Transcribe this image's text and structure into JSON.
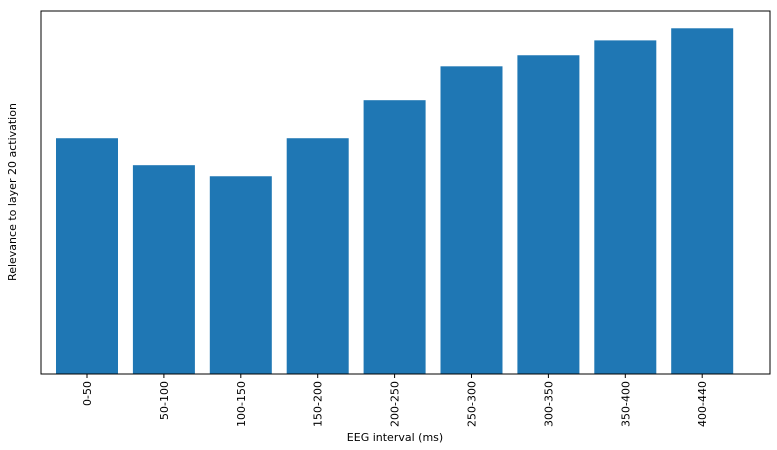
{
  "chart_data": {
    "type": "bar",
    "x_label": "EEG interval (ms)",
    "y_label": "Relevance to layer 20 activation",
    "categories": [
      "0-50",
      "50-100",
      "100-150",
      "150-200",
      "200-250",
      "250-300",
      "300-350",
      "350-400",
      "400-440"
    ],
    "values": [
      0.682,
      0.604,
      0.572,
      0.682,
      0.792,
      0.89,
      0.922,
      0.965,
      1.0
    ],
    "color": "#1f77b4",
    "ylim": [
      0,
      1.05
    ]
  }
}
